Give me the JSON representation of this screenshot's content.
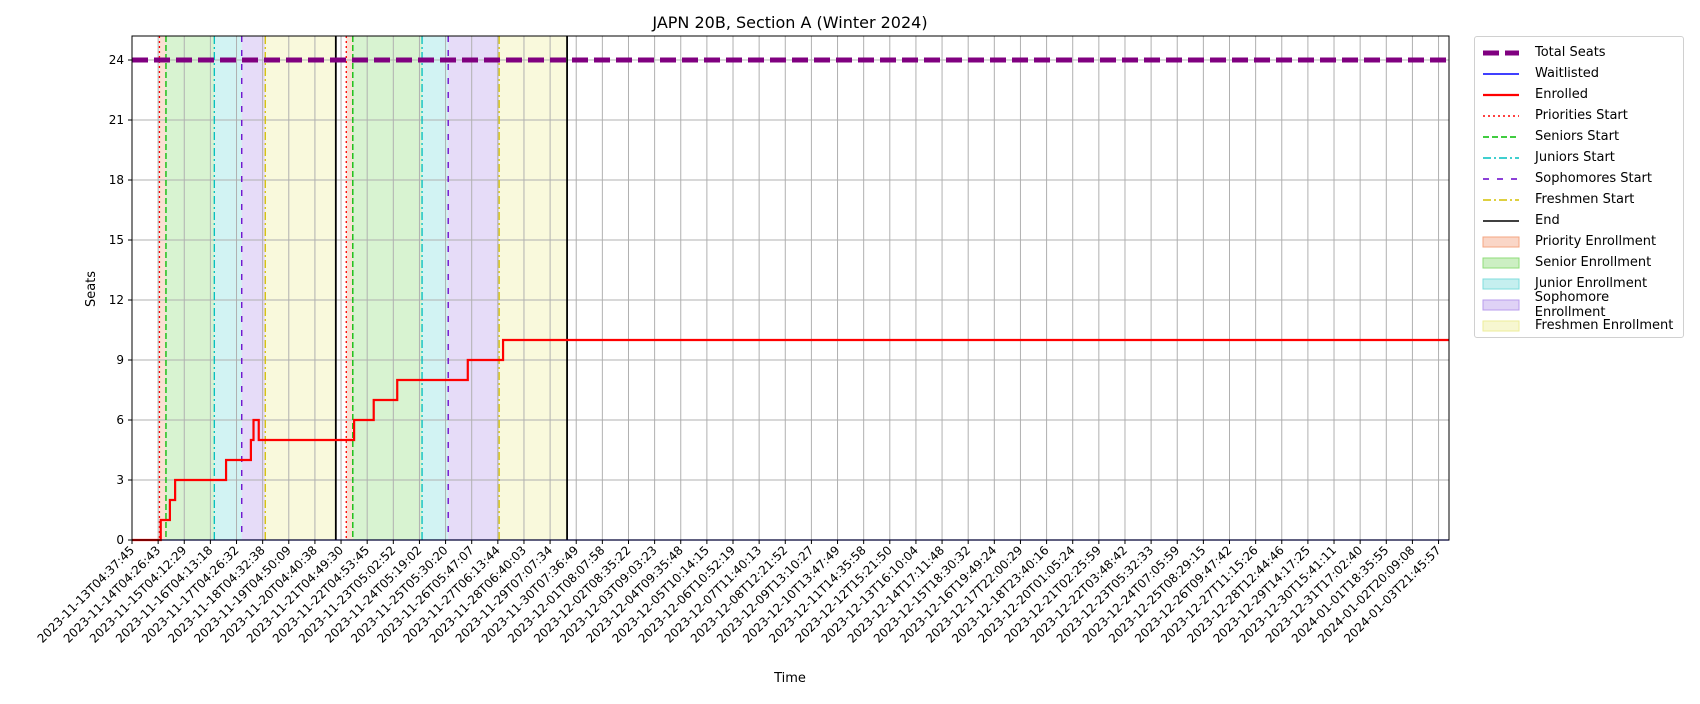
{
  "chart_data": {
    "type": "line",
    "title": "JAPN 20B, Section A (Winter 2024)",
    "xlabel": "Time",
    "ylabel": "Seats",
    "ylim": [
      0,
      25.2
    ],
    "yticks": [
      0,
      3,
      6,
      9,
      12,
      15,
      18,
      21,
      24
    ],
    "grid": true,
    "legend_position": "outside-right-top",
    "x_tick_labels": [
      "2023-11-13T04:37:45",
      "2023-11-14T04:26:43",
      "2023-11-15T04:12:29",
      "2023-11-16T04:13:18",
      "2023-11-17T04:26:32",
      "2023-11-18T04:32:38",
      "2023-11-19T04:50:09",
      "2023-11-20T04:40:38",
      "2023-11-21T04:49:30",
      "2023-11-22T04:53:45",
      "2023-11-23T05:02:52",
      "2023-11-24T05:19:02",
      "2023-11-25T05:30:20",
      "2023-11-26T05:47:07",
      "2023-11-27T06:13:44",
      "2023-11-28T06:40:03",
      "2023-11-29T07:07:34",
      "2023-11-30T07:36:49",
      "2023-12-01T08:07:58",
      "2023-12-02T08:35:22",
      "2023-12-03T09:03:23",
      "2023-12-04T09:35:48",
      "2023-12-05T10:14:15",
      "2023-12-06T10:52:19",
      "2023-12-07T11:40:13",
      "2023-12-08T12:21:52",
      "2023-12-09T13:10:27",
      "2023-12-10T13:47:49",
      "2023-12-11T14:35:58",
      "2023-12-12T15:21:50",
      "2023-12-13T16:10:04",
      "2023-12-14T17:11:48",
      "2023-12-15T18:30:32",
      "2023-12-16T19:49:24",
      "2023-12-17T22:00:29",
      "2023-12-18T23:40:16",
      "2023-12-20T01:05:24",
      "2023-12-21T02:25:59",
      "2023-12-22T03:48:42",
      "2023-12-23T05:32:33",
      "2023-12-24T07:05:59",
      "2023-12-25T08:29:15",
      "2023-12-26T09:47:42",
      "2023-12-27T11:15:26",
      "2023-12-28T12:44:46",
      "2023-12-29T14:17:25",
      "2023-12-30T15:41:11",
      "2023-12-31T17:02:40",
      "2024-01-01T18:35:55",
      "2024-01-02T20:09:08",
      "2024-01-03T21:45:57"
    ],
    "x_range_days": [
      0,
      50.4
    ],
    "series": [
      {
        "name": "Total Seats",
        "color": "#800080",
        "style": "dashed-thick",
        "points": [
          [
            0,
            24
          ],
          [
            50.4,
            24
          ]
        ]
      },
      {
        "name": "Waitlisted",
        "color": "#0000ff",
        "style": "solid",
        "points": [
          [
            0,
            0
          ],
          [
            50.4,
            0
          ]
        ]
      },
      {
        "name": "Enrolled",
        "color": "#ff0000",
        "style": "solid-thick",
        "points": [
          [
            0,
            0
          ],
          [
            1.1,
            0
          ],
          [
            1.1,
            1
          ],
          [
            1.45,
            1
          ],
          [
            1.45,
            2
          ],
          [
            1.65,
            2
          ],
          [
            1.65,
            3
          ],
          [
            3.6,
            3
          ],
          [
            3.6,
            4
          ],
          [
            4.55,
            4
          ],
          [
            4.55,
            5
          ],
          [
            4.65,
            5
          ],
          [
            4.65,
            6
          ],
          [
            4.85,
            6
          ],
          [
            4.85,
            5
          ],
          [
            8.5,
            5
          ],
          [
            8.5,
            6
          ],
          [
            9.25,
            6
          ],
          [
            9.25,
            7
          ],
          [
            10.15,
            7
          ],
          [
            10.15,
            8
          ],
          [
            12.85,
            8
          ],
          [
            12.85,
            9
          ],
          [
            14.2,
            9
          ],
          [
            14.2,
            10
          ],
          [
            50.4,
            10
          ]
        ]
      }
    ],
    "phase_lines": [
      {
        "name": "Priorities Start",
        "color": "#ff0000",
        "style": "dotted",
        "x": [
          1.05,
          8.2
        ]
      },
      {
        "name": "Seniors Start",
        "color": "#00bb00",
        "style": "dashed",
        "x": [
          1.3,
          8.45
        ]
      },
      {
        "name": "Juniors Start",
        "color": "#00bfbf",
        "style": "dashdot",
        "x": [
          3.15,
          11.1
        ]
      },
      {
        "name": "Sophomores Start",
        "color": "#6600cc",
        "style": "loosedash",
        "x": [
          4.2,
          12.1
        ]
      },
      {
        "name": "Freshmen Start",
        "color": "#d4c000",
        "style": "dashdot",
        "x": [
          5.1,
          14.05
        ]
      },
      {
        "name": "End",
        "color": "#000000",
        "style": "solid",
        "x": [
          7.8,
          16.65
        ]
      }
    ],
    "phases": [
      {
        "name": "Priority Enrollment",
        "color": "#f4a582",
        "ranges": [
          [
            1.05,
            1.3
          ],
          [
            8.2,
            8.45
          ]
        ]
      },
      {
        "name": "Senior Enrollment",
        "color": "#8fdc7a",
        "ranges": [
          [
            1.3,
            3.15
          ],
          [
            8.45,
            11.1
          ]
        ]
      },
      {
        "name": "Junior Enrollment",
        "color": "#7fdcdc",
        "ranges": [
          [
            3.15,
            4.2
          ],
          [
            11.1,
            12.1
          ]
        ]
      },
      {
        "name": "Sophomore Enrollment",
        "color": "#b89cec",
        "ranges": [
          [
            4.2,
            5.1
          ],
          [
            12.1,
            14.05
          ]
        ]
      },
      {
        "name": "Freshmen Enrollment",
        "color": "#eeee9a",
        "ranges": [
          [
            5.1,
            7.8
          ],
          [
            14.05,
            16.65
          ]
        ]
      }
    ]
  },
  "legend": [
    {
      "label": "Total Seats",
      "kind": "line",
      "color": "#800080",
      "style": "dashed-thick"
    },
    {
      "label": "Waitlisted",
      "kind": "line",
      "color": "#0000ff",
      "style": "solid"
    },
    {
      "label": "Enrolled",
      "kind": "line",
      "color": "#ff0000",
      "style": "solid-thick"
    },
    {
      "label": "Priorities Start",
      "kind": "line",
      "color": "#ff0000",
      "style": "dotted"
    },
    {
      "label": "Seniors Start",
      "kind": "line",
      "color": "#00bb00",
      "style": "dashed"
    },
    {
      "label": "Juniors Start",
      "kind": "line",
      "color": "#00bfbf",
      "style": "dashdot"
    },
    {
      "label": "Sophomores Start",
      "kind": "line",
      "color": "#6600cc",
      "style": "loosedash"
    },
    {
      "label": "Freshmen Start",
      "kind": "line",
      "color": "#d4c000",
      "style": "dashdot"
    },
    {
      "label": "End",
      "kind": "line",
      "color": "#000000",
      "style": "solid"
    },
    {
      "label": "Priority Enrollment",
      "kind": "patch",
      "color": "#f4a582"
    },
    {
      "label": "Senior Enrollment",
      "kind": "patch",
      "color": "#8fdc7a"
    },
    {
      "label": "Junior Enrollment",
      "kind": "patch",
      "color": "#7fdcdc"
    },
    {
      "label": "Sophomore Enrollment",
      "kind": "patch",
      "color": "#b89cec"
    },
    {
      "label": "Freshmen Enrollment",
      "kind": "patch",
      "color": "#eeee9a"
    }
  ]
}
